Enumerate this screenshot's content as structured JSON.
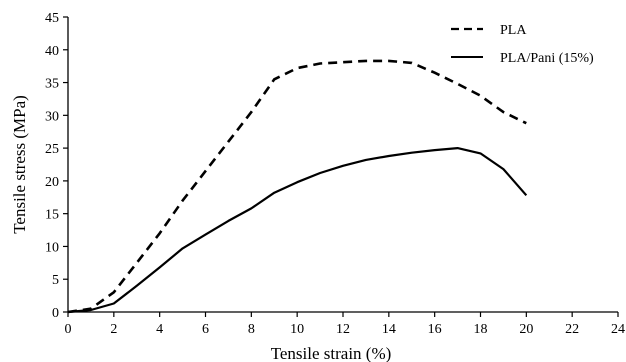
{
  "chart_data": {
    "type": "line",
    "xlabel": "Tensile strain (%)",
    "ylabel": "Tensile stress (MPa)",
    "xlim": [
      0,
      24
    ],
    "ylim": [
      0,
      45
    ],
    "xticks": [
      "0",
      "2",
      "4",
      "6",
      "8",
      "10",
      "12",
      "14",
      "16",
      "18",
      "20",
      "22",
      "24"
    ],
    "yticks": [
      "0",
      "5",
      "10",
      "15",
      "20",
      "25",
      "30",
      "35",
      "40",
      "45"
    ],
    "grid": false,
    "legend_position": "top-right",
    "series": [
      {
        "name": "PLA",
        "style": "dashed",
        "color": "#000000",
        "x": [
          0,
          1,
          2,
          3,
          4,
          5,
          6,
          7,
          8,
          9,
          10,
          11,
          12,
          13,
          14,
          15,
          16,
          17,
          18,
          19,
          20
        ],
        "y": [
          0,
          0.5,
          3,
          7.5,
          12,
          17,
          21.5,
          26,
          30.5,
          35.5,
          37.2,
          37.9,
          38.1,
          38.3,
          38.3,
          38.0,
          36.5,
          34.8,
          33.0,
          30.5,
          28.8
        ]
      },
      {
        "name": "PLA/Pani (15%)",
        "style": "solid",
        "color": "#000000",
        "x": [
          0,
          1,
          2,
          3,
          4,
          5,
          6,
          7,
          8,
          9,
          10,
          11,
          12,
          13,
          14,
          15,
          16,
          17,
          18,
          19,
          20
        ],
        "y": [
          0,
          0.3,
          1.3,
          4.0,
          6.8,
          9.7,
          11.8,
          13.9,
          15.8,
          18.2,
          19.8,
          21.2,
          22.3,
          23.2,
          23.8,
          24.3,
          24.7,
          25.0,
          24.2,
          21.8,
          17.8
        ]
      }
    ]
  }
}
